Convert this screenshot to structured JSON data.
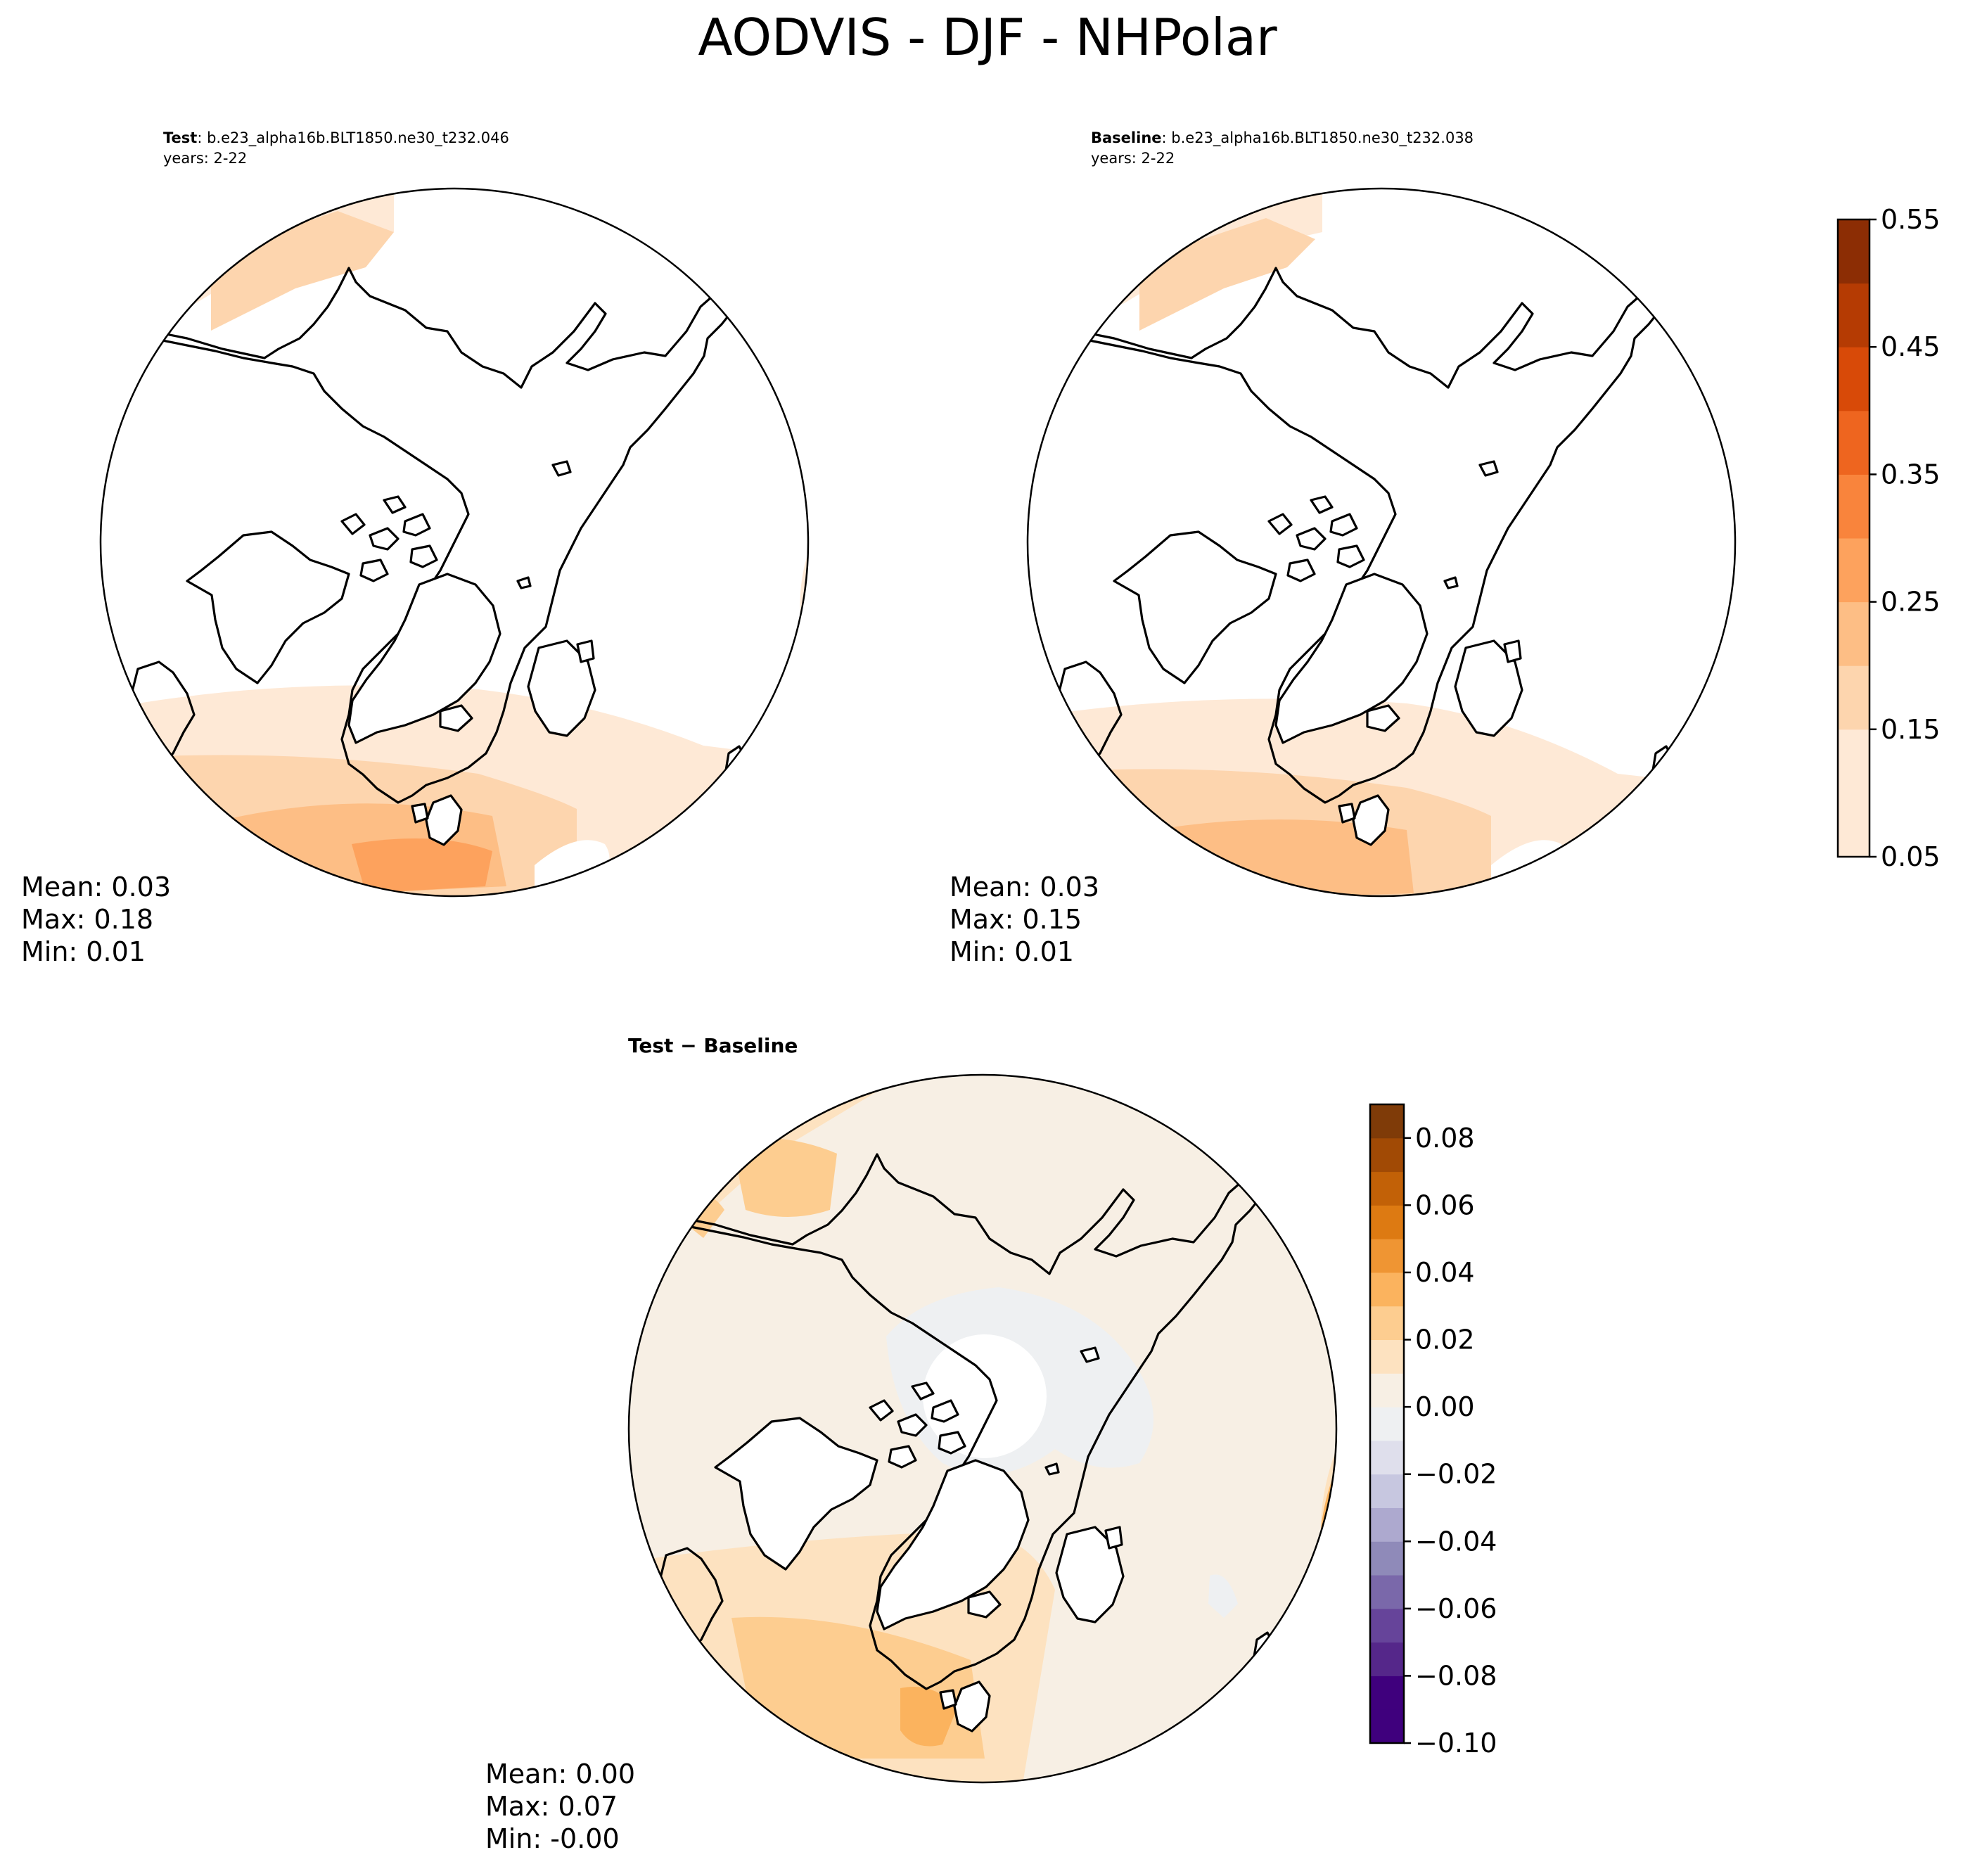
{
  "title": "AODVIS - DJF - NHPolar",
  "colors": {
    "seq": [
      "#fee9d6",
      "#fdd5ae",
      "#fdbe85",
      "#fda25d",
      "#f9843c",
      "#ee651f",
      "#d84a08",
      "#b53b03",
      "#8c2d04"
    ],
    "diff": [
      "#3f007d",
      "#55278a",
      "#66449a",
      "#7a68aa",
      "#8f8ab9",
      "#ada9cf",
      "#c7c7e0",
      "#dfdfec",
      "#eef0f2",
      "#f7efe4",
      "#fde2c0",
      "#fdcd90",
      "#fbb35e",
      "#ef9533",
      "#dd7a12",
      "#c26107",
      "#a14a05",
      "#7f3b08"
    ],
    "coast": "#000000",
    "land": "#ffffff"
  },
  "chart_data": [
    {
      "type": "polar-map",
      "label_bold": "Test",
      "label_rest": ": b.e23_alpha16b.BLT1850.ne30_t232.046",
      "years": "years: 2-22",
      "stats": {
        "mean": "Mean:  0.03",
        "max": "Max:  0.18",
        "min": "Min:  0.01"
      },
      "colorbar_ticks": [
        "0.05",
        "0.15",
        "0.25",
        "0.35",
        "0.45",
        "0.55"
      ],
      "levels": [
        0.05,
        0.1,
        0.15,
        0.2,
        0.25,
        0.3,
        0.35,
        0.4,
        0.45,
        0.5,
        0.55
      ]
    },
    {
      "type": "polar-map",
      "label_bold": "Baseline",
      "label_rest": ": b.e23_alpha16b.BLT1850.ne30_t232.038",
      "years": "years: 2-22",
      "stats": {
        "mean": "Mean:  0.03",
        "max": "Max:  0.15",
        "min": "Min:  0.01"
      },
      "colorbar_ticks": [
        "0.05",
        "0.15",
        "0.25",
        "0.35",
        "0.45",
        "0.55"
      ],
      "levels": [
        0.05,
        0.1,
        0.15,
        0.2,
        0.25,
        0.3,
        0.35,
        0.4,
        0.45,
        0.5,
        0.55
      ]
    },
    {
      "type": "polar-map",
      "label_bold": "Test − Baseline",
      "label_rest": "",
      "years": "",
      "stats": {
        "mean": "Mean:  0.00",
        "max": "Max:  0.07",
        "min": "Min: -0.00"
      },
      "colorbar_ticks": [
        "0.08",
        "0.06",
        "0.04",
        "0.02",
        "0.00",
        "−0.02",
        "−0.04",
        "−0.06",
        "−0.08",
        "−0.10"
      ],
      "levels": [
        -0.1,
        -0.09,
        -0.08,
        -0.07,
        -0.06,
        -0.05,
        -0.04,
        -0.03,
        -0.02,
        -0.01,
        0.0,
        0.01,
        0.02,
        0.03,
        0.04,
        0.05,
        0.06,
        0.07,
        0.08,
        0.09
      ]
    }
  ]
}
